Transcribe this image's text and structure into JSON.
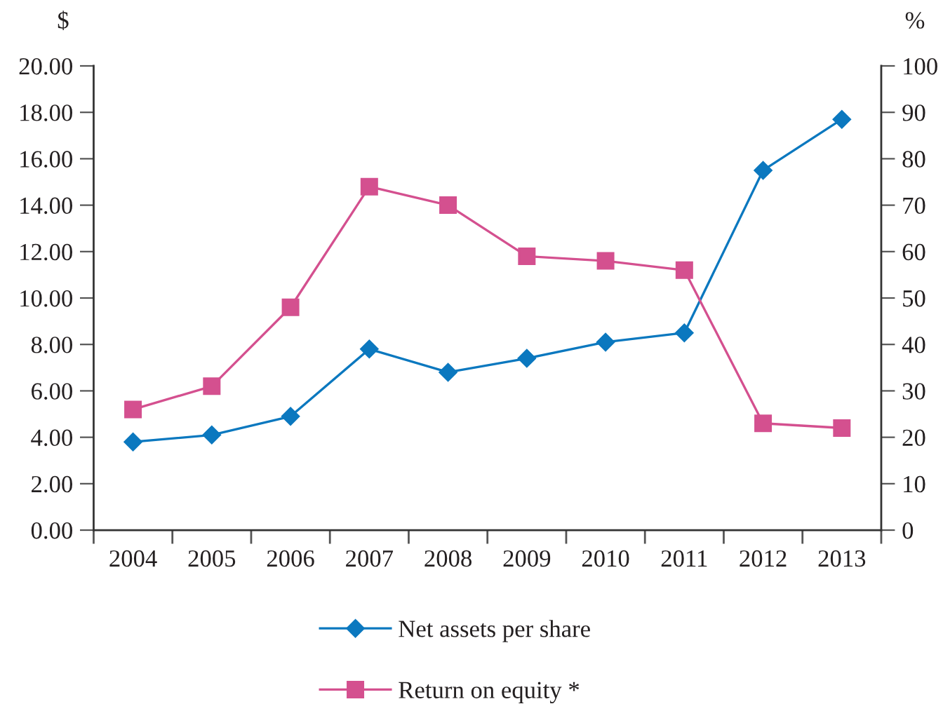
{
  "chart_data": {
    "type": "line",
    "ylabel": "$",
    "y2label": "%",
    "categories": [
      "2004",
      "2005",
      "2006",
      "2007",
      "2008",
      "2009",
      "2010",
      "2011",
      "2012",
      "2013"
    ],
    "series": [
      {
        "name": "Net assets per share",
        "color": "#0b78bf",
        "marker": "diamond",
        "values": [
          3.8,
          4.1,
          4.9,
          7.8,
          6.8,
          7.4,
          8.1,
          8.5,
          15.5,
          17.7
        ]
      },
      {
        "name": "Return on equity *",
        "color": "#d4508f",
        "marker": "square",
        "axis": "y2",
        "values": [
          26,
          31,
          48,
          74,
          70,
          59,
          58,
          56,
          23,
          22
        ]
      }
    ],
    "ylim": [
      0,
      20
    ],
    "yticks": [
      {
        "value": 0,
        "label": "0.00"
      },
      {
        "value": 2,
        "label": "2.00"
      },
      {
        "value": 4,
        "label": "4.00"
      },
      {
        "value": 6,
        "label": "6.00"
      },
      {
        "value": 8,
        "label": "8.00"
      },
      {
        "value": 10,
        "label": "10.00"
      },
      {
        "value": 12,
        "label": "12.00"
      },
      {
        "value": 14,
        "label": "14.00"
      },
      {
        "value": 16,
        "label": "16.00"
      },
      {
        "value": 18,
        "label": "18.00"
      },
      {
        "value": 20,
        "label": "20.00"
      }
    ],
    "y2lim": [
      0,
      100
    ],
    "y2ticks": [
      0,
      10,
      20,
      30,
      40,
      50,
      60,
      70,
      80,
      90,
      100
    ],
    "legend": "bottom",
    "line_style": "solid"
  }
}
